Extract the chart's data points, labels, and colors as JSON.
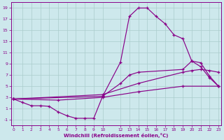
{
  "xlabel": "Windchill (Refroidissement éolien,°C)",
  "bg_color": "#cde8ec",
  "grid_color": "#aacccc",
  "line_color": "#880088",
  "ylim": [
    -2,
    20
  ],
  "xlim": [
    -0.3,
    23.3
  ],
  "yticks": [
    -1,
    1,
    3,
    5,
    7,
    9,
    11,
    13,
    15,
    17,
    19
  ],
  "xticks": [
    0,
    1,
    2,
    3,
    4,
    5,
    6,
    7,
    8,
    9,
    10,
    12,
    13,
    14,
    15,
    16,
    17,
    18,
    19,
    20,
    21,
    22,
    23
  ],
  "curve_big_x": [
    0,
    1,
    2,
    3,
    4,
    5,
    6,
    7,
    8,
    9,
    10,
    12,
    13,
    14,
    15,
    16,
    17,
    18,
    19,
    20,
    21,
    22,
    23
  ],
  "curve_big_y": [
    2.7,
    2.1,
    1.5,
    1.5,
    1.4,
    0.4,
    -0.3,
    -0.75,
    -0.75,
    -0.75,
    3.2,
    9.3,
    17.5,
    19.0,
    19.0,
    17.5,
    16.2,
    14.2,
    13.5,
    9.5,
    9.2,
    6.8,
    5.0
  ],
  "curve_mid_x": [
    0,
    10,
    12,
    13,
    14,
    19,
    20,
    21,
    22,
    23
  ],
  "curve_mid_y": [
    2.7,
    3.2,
    5.5,
    7.0,
    7.5,
    8.0,
    9.5,
    8.5,
    6.5,
    5.0
  ],
  "curve_hi_straight_x": [
    0,
    10,
    14,
    19,
    20,
    21,
    22,
    23
  ],
  "curve_hi_straight_y": [
    2.7,
    3.5,
    5.5,
    7.5,
    7.8,
    8.0,
    7.8,
    7.5
  ],
  "curve_lo_straight_x": [
    0,
    5,
    10,
    14,
    19,
    23
  ],
  "curve_lo_straight_y": [
    2.7,
    2.5,
    3.0,
    4.0,
    5.0,
    5.0
  ]
}
